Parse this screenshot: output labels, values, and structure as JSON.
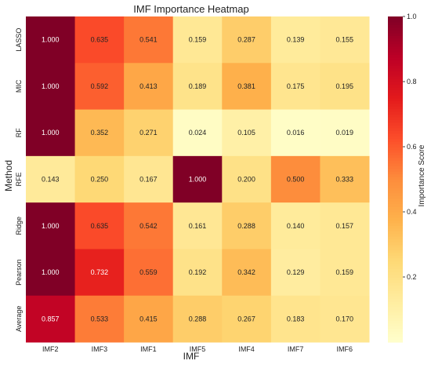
{
  "chart_data": {
    "type": "heatmap",
    "title": "IMF Importance Heatmap",
    "xlabel": "IMF",
    "ylabel": "Method",
    "colorbar_label": "Importance Score",
    "x_categories": [
      "IMF2",
      "IMF3",
      "IMF1",
      "IMF5",
      "IMF4",
      "IMF7",
      "IMF6"
    ],
    "y_categories": [
      "LASSO",
      "MIC",
      "RF",
      "RFE",
      "Ridge",
      "Pearson",
      "Average"
    ],
    "values": [
      [
        1.0,
        0.635,
        0.541,
        0.159,
        0.287,
        0.139,
        0.155
      ],
      [
        1.0,
        0.592,
        0.413,
        0.189,
        0.381,
        0.175,
        0.195
      ],
      [
        1.0,
        0.352,
        0.271,
        0.024,
        0.105,
        0.016,
        0.019
      ],
      [
        0.143,
        0.25,
        0.167,
        1.0,
        0.2,
        0.5,
        0.333
      ],
      [
        1.0,
        0.635,
        0.542,
        0.161,
        0.288,
        0.14,
        0.157
      ],
      [
        1.0,
        0.732,
        0.559,
        0.192,
        0.342,
        0.129,
        0.159
      ],
      [
        0.857,
        0.533,
        0.415,
        0.288,
        0.267,
        0.183,
        0.17
      ]
    ],
    "value_format": "3 decimals",
    "colormap": "YlOrRd",
    "colorbar_range": [
      0,
      1
    ],
    "colorbar_ticks": [
      "0.2",
      "0.4",
      "0.6",
      "0.8",
      "1.0"
    ],
    "grid": false
  }
}
